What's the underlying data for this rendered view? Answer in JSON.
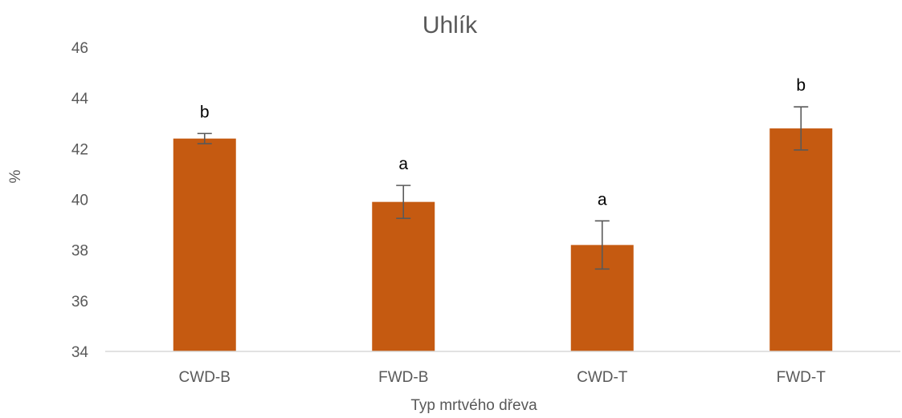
{
  "chart_data": {
    "type": "bar",
    "title": "Uhlík",
    "xlabel": "Typ mrtvého dřeva",
    "ylabel": "%",
    "ylim": [
      34,
      46
    ],
    "yticks": [
      34,
      36,
      38,
      40,
      42,
      44,
      46
    ],
    "grid": false,
    "categories": [
      "CWD-B",
      "FWD-B",
      "CWD-T",
      "FWD-T"
    ],
    "values": [
      42.4,
      39.9,
      38.2,
      42.8
    ],
    "error": [
      0.2,
      0.65,
      0.95,
      0.85
    ],
    "significance_labels": [
      "b",
      "a",
      "a",
      "b"
    ],
    "colors": {
      "bar": "#C55A11",
      "error_bar": "#595959",
      "axis": "#D9D9D9"
    }
  }
}
